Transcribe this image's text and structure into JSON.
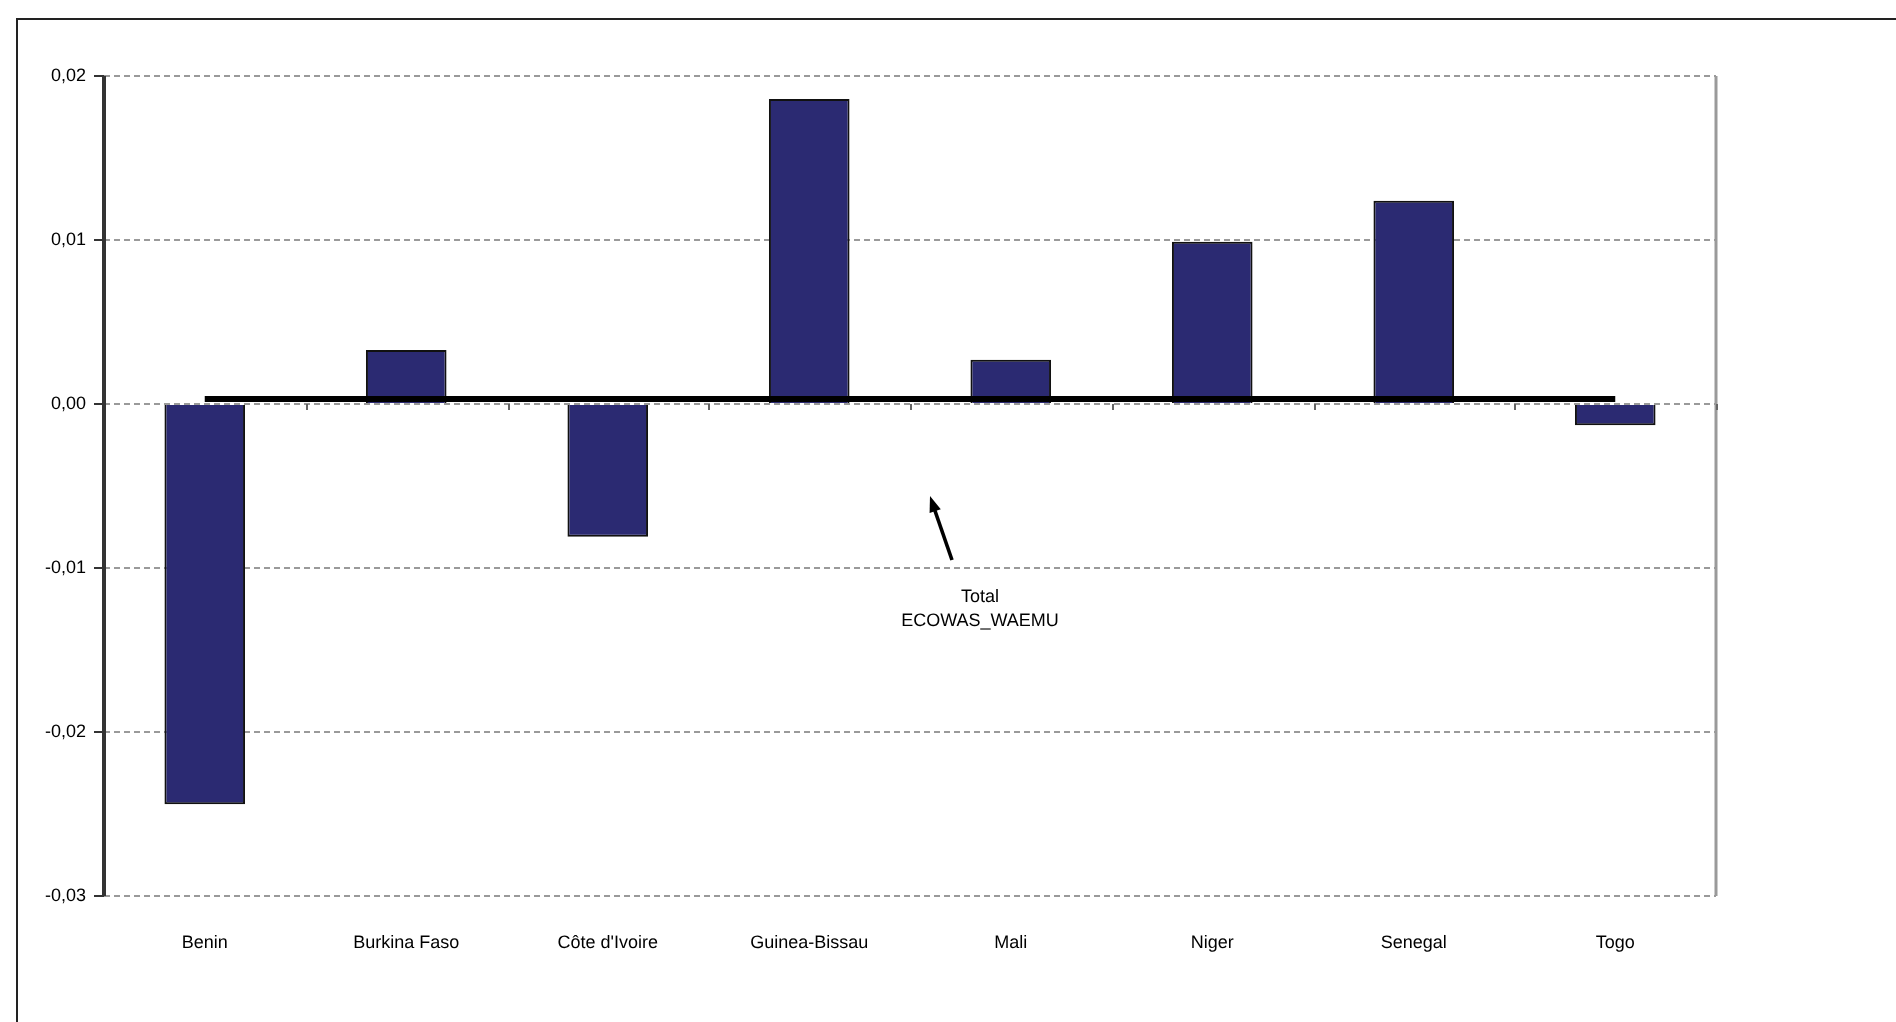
{
  "chart_data": {
    "type": "bar",
    "categories": [
      "Benin",
      "Burkina Faso",
      "Côte d'Ivoire",
      "Guinea-Bissau",
      "Mali",
      "Niger",
      "Senegal",
      "Togo"
    ],
    "series": [
      {
        "color": "#2b2a72",
        "values": [
          -0.0244,
          0.0033,
          -0.0081,
          0.0186,
          0.0027,
          0.0099,
          0.0124,
          -0.0013
        ]
      },
      {
        "type": "line",
        "name": "Total ECOWAS_WAEMU",
        "color": "#000000",
        "values": [
          0.0003,
          0.0003,
          0.0003,
          0.0003,
          0.0003,
          0.0003,
          0.0003,
          0.0003
        ]
      }
    ],
    "ylim": [
      -0.03,
      0.02
    ],
    "yticks": [
      {
        "value": -0.03,
        "label": "-0,03"
      },
      {
        "value": -0.02,
        "label": "-0,02"
      },
      {
        "value": -0.01,
        "label": "-0,01"
      },
      {
        "value": 0,
        "label": "0,00"
      },
      {
        "value": 0.01,
        "label": "0,01"
      },
      {
        "value": 0.02,
        "label": "0,02"
      }
    ],
    "grid": "y"
  }
}
